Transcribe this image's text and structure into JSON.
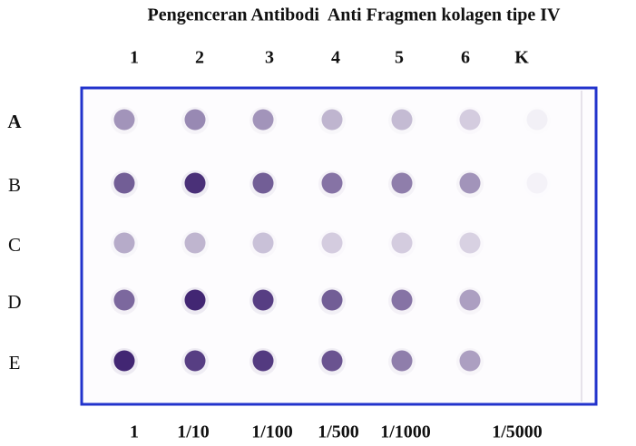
{
  "title": "Pengenceran Antibodi  Anti Fragmen kolagen tipe IV",
  "columns": [
    "1",
    "2",
    "3",
    "4",
    "5",
    "6",
    "K"
  ],
  "rows": [
    "A",
    "B",
    "C",
    "D",
    "E"
  ],
  "dilutions": [
    "1",
    "1/10",
    "1/100",
    "1/500",
    "1/1000",
    "1/5000"
  ]
}
